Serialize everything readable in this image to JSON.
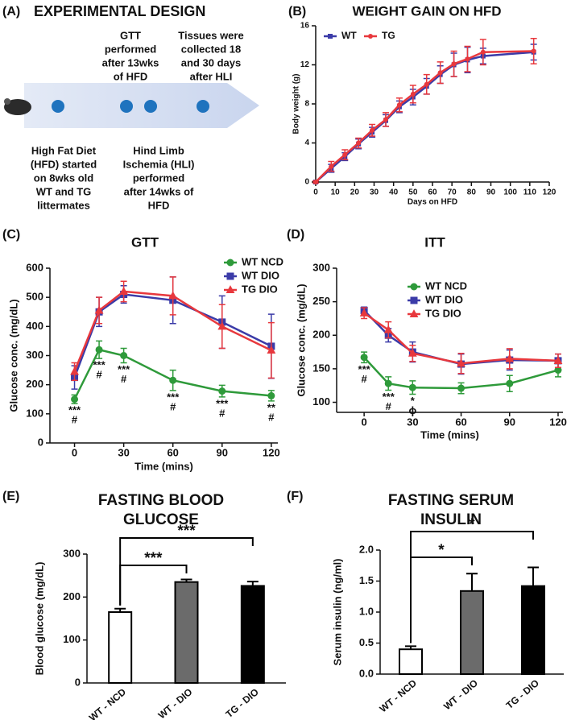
{
  "panel_a": {
    "label": "(A)",
    "title": "EXPERIMENTAL DESIGN",
    "notes": [
      {
        "lines": [
          "GTT",
          "performed",
          "after 13wks",
          "of HFD"
        ]
      },
      {
        "lines": [
          "Tissues were",
          "collected 18",
          "and 30 days",
          "after HLI"
        ]
      },
      {
        "lines": [
          "High Fat Diet",
          "(HFD) started",
          "on 8wks old",
          "WT and TG",
          "littermates"
        ]
      },
      {
        "lines": [
          "Hind Limb",
          "Ischemia (HLI)",
          "performed",
          "after 14wks of",
          "HFD"
        ]
      }
    ]
  },
  "chart_data": [
    {
      "type": "line",
      "panel_label": "(B)",
      "title": "WEIGHT GAIN ON HFD",
      "xlabel": "Days on HFD",
      "ylabel": "Body weight (g)",
      "x": [
        0,
        8,
        15,
        22,
        29,
        36,
        43,
        50,
        57,
        64,
        71,
        78,
        86,
        112
      ],
      "series": [
        {
          "name": "WT",
          "color": "#3b3ba8",
          "marker": "square",
          "values": [
            0,
            1.4,
            2.6,
            3.9,
            5.1,
            6.3,
            7.7,
            8.7,
            9.8,
            11,
            12,
            12.5,
            12.9,
            13.3
          ],
          "errors": [
            0.1,
            0.4,
            0.4,
            0.5,
            0.5,
            0.6,
            0.6,
            0.8,
            0.8,
            0.9,
            1.2,
            1.3,
            0.8,
            0.8
          ]
        },
        {
          "name": "TG",
          "color": "#e8383d",
          "marker": "circle",
          "values": [
            0,
            1.6,
            2.8,
            4,
            5.3,
            6.4,
            7.9,
            9,
            10,
            11.2,
            12.1,
            12.6,
            13.3,
            13.4
          ],
          "errors": [
            0.1,
            0.5,
            0.5,
            0.5,
            0.6,
            0.7,
            0.7,
            0.9,
            1,
            1.1,
            1.3,
            1.3,
            1.3,
            1.3
          ]
        }
      ],
      "xlim": [
        0,
        120
      ],
      "xticks": [
        0,
        10,
        20,
        30,
        40,
        50,
        60,
        70,
        80,
        90,
        100,
        110,
        120
      ],
      "ylim": [
        0,
        16
      ],
      "yticks": [
        0,
        4,
        8,
        12,
        16
      ],
      "legend": "upper left"
    },
    {
      "type": "line",
      "panel_label": "(C)",
      "title": "GTT",
      "xlabel": "Time (mins)",
      "ylabel": "Glucose conc. (mg/dL)",
      "x": [
        0,
        15,
        30,
        60,
        90,
        120
      ],
      "series": [
        {
          "name": "WT NCD",
          "color": "#2e9a3a",
          "marker": "circle",
          "values": [
            150,
            320,
            300,
            215,
            178,
            162
          ],
          "errors": [
            15,
            30,
            25,
            35,
            20,
            18
          ]
        },
        {
          "name": "WT DIO",
          "color": "#3b3ba8",
          "marker": "square",
          "values": [
            225,
            450,
            510,
            490,
            415,
            332
          ],
          "errors": [
            40,
            50,
            30,
            80,
            90,
            110
          ]
        },
        {
          "name": "TG DIO",
          "color": "#e8383d",
          "marker": "triangle",
          "values": [
            245,
            455,
            520,
            505,
            400,
            318
          ],
          "errors": [
            30,
            45,
            35,
            65,
            75,
            95
          ]
        }
      ],
      "annotations": [
        {
          "x": 0,
          "text": [
            "***",
            "#"
          ]
        },
        {
          "x": 15,
          "text": [
            "***",
            "#"
          ]
        },
        {
          "x": 30,
          "text": [
            "***",
            "#"
          ]
        },
        {
          "x": 60,
          "text": [
            "***",
            "#"
          ]
        },
        {
          "x": 90,
          "text": [
            "***",
            "#"
          ]
        },
        {
          "x": 120,
          "text": [
            "**",
            "#"
          ]
        }
      ],
      "xlim": [
        -15,
        124
      ],
      "xticks": [
        0,
        30,
        60,
        90,
        120
      ],
      "ylim": [
        0,
        600
      ],
      "yticks": [
        0,
        100,
        200,
        300,
        400,
        500,
        600
      ],
      "legend": "upper right"
    },
    {
      "type": "line",
      "panel_label": "(D)",
      "title": "ITT",
      "xlabel": "Time (mins)",
      "ylabel": "Glucose conc. (mg/dL)",
      "x": [
        0,
        15,
        30,
        60,
        90,
        120
      ],
      "series": [
        {
          "name": "WT NCD",
          "color": "#2e9a3a",
          "marker": "circle",
          "values": [
            167,
            128,
            122,
            121,
            128,
            148
          ],
          "errors": [
            8,
            10,
            10,
            8,
            12,
            10
          ]
        },
        {
          "name": "WT DIO",
          "color": "#3b3ba8",
          "marker": "square",
          "values": [
            237,
            200,
            175,
            157,
            163,
            162
          ],
          "errors": [
            5,
            10,
            15,
            15,
            15,
            10
          ]
        },
        {
          "name": "TG DIO",
          "color": "#e8383d",
          "marker": "triangle",
          "values": [
            233,
            208,
            173,
            158,
            165,
            162
          ],
          "errors": [
            8,
            12,
            12,
            15,
            15,
            10
          ]
        }
      ],
      "annotations": [
        {
          "x": 0,
          "text": [
            "***",
            "#"
          ]
        },
        {
          "x": 15,
          "text": [
            "***",
            "#"
          ]
        },
        {
          "x": 30,
          "text": [
            "*",
            "ϕ"
          ]
        }
      ],
      "xlim": [
        -17,
        123
      ],
      "xticks": [
        0,
        30,
        60,
        90,
        120
      ],
      "ylim": [
        85,
        300
      ],
      "yticks": [
        100,
        150,
        200,
        250,
        300
      ],
      "legend": "upper right"
    },
    {
      "type": "bar",
      "panel_label": "(E)",
      "title": [
        "FASTING BLOOD",
        "GLUCOSE"
      ],
      "ylabel": "Blood glucose (mg/dL)",
      "categories": [
        "WT - NCD",
        "WT - DIO",
        "TG - DIO"
      ],
      "values": [
        165,
        235,
        226
      ],
      "errors": [
        8,
        6,
        10
      ],
      "colors": [
        "#ffffff",
        "#6b6b6b",
        "#000000"
      ],
      "significance": [
        {
          "groups": [
            "WT - NCD",
            "WT - DIO"
          ],
          "label": "***"
        },
        {
          "groups": [
            "WT - NCD",
            "TG - DIO"
          ],
          "label": "***"
        }
      ],
      "ylim": [
        0,
        300
      ],
      "yticks": [
        0,
        100,
        200,
        300
      ]
    },
    {
      "type": "bar",
      "panel_label": "(F)",
      "title": [
        "FASTING SERUM",
        "INSULIN"
      ],
      "ylabel": "Serum insulin (ng/ml)",
      "categories": [
        "WT - NCD",
        "WT - DIO",
        "TG - DIO"
      ],
      "values": [
        0.4,
        1.34,
        1.42
      ],
      "errors": [
        0.05,
        0.28,
        0.3
      ],
      "colors": [
        "#ffffff",
        "#6b6b6b",
        "#000000"
      ],
      "significance": [
        {
          "groups": [
            "WT - NCD",
            "WT - DIO"
          ],
          "label": "*"
        },
        {
          "groups": [
            "WT - NCD",
            "TG - DIO"
          ],
          "label": "*"
        }
      ],
      "ylim": [
        0,
        2
      ],
      "yticks": [
        {
          "value": 0,
          "label": "0.0"
        },
        0.5,
        {
          "value": 1,
          "label": "1.0"
        },
        1.5,
        {
          "value": 2,
          "label": "2.0"
        }
      ]
    }
  ]
}
